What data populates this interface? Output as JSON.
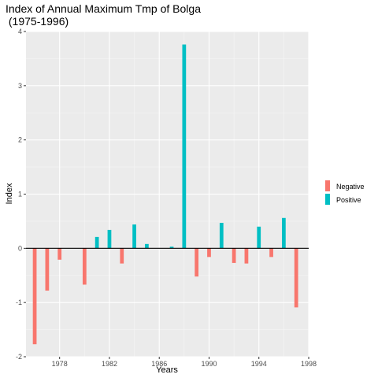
{
  "chart_data": {
    "type": "bar",
    "title": "Index of Annual Maximum Tmp of Bolga\n (1975-1996)",
    "xlabel": "Years",
    "ylabel": "Index",
    "xlim": [
      1975.3,
      1998.0
    ],
    "ylim": [
      -2.0,
      4.0
    ],
    "x_ticks": [
      1978,
      1982,
      1986,
      1990,
      1994,
      1998
    ],
    "y_ticks": [
      -2,
      -1,
      0,
      1,
      2,
      3,
      4
    ],
    "grid": true,
    "legend_position": "right",
    "legend": [
      {
        "name": "Negative",
        "color": "#F8766D"
      },
      {
        "name": "Positive",
        "color": "#00BFC4"
      }
    ],
    "series": [
      {
        "name": "Negative",
        "color": "#F8766D",
        "x": [
          1976,
          1977,
          1978,
          1980,
          1983,
          1989,
          1990,
          1992,
          1993,
          1995,
          1997
        ],
        "values": [
          -1.77,
          -0.78,
          -0.21,
          -0.67,
          -0.28,
          -0.52,
          -0.16,
          -0.27,
          -0.28,
          -0.16,
          -1.09
        ]
      },
      {
        "name": "Positive",
        "color": "#00BFC4",
        "x": [
          1981,
          1982,
          1984,
          1985,
          1987,
          1988,
          1991,
          1994,
          1996
        ],
        "values": [
          0.21,
          0.34,
          0.44,
          0.08,
          0.03,
          3.76,
          0.47,
          0.4,
          0.56
        ]
      }
    ]
  }
}
